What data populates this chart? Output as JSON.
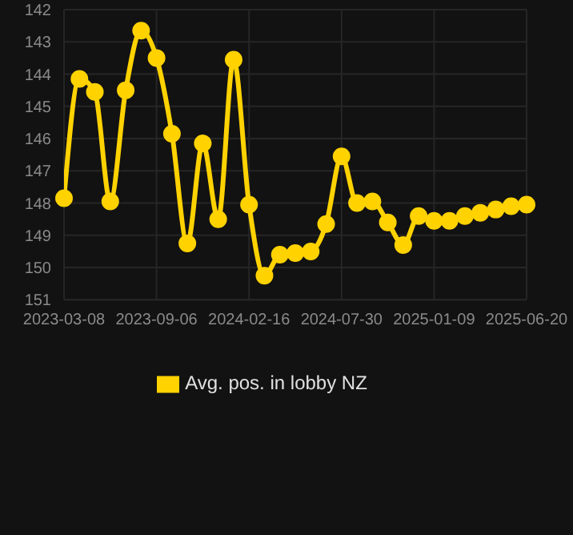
{
  "chart_data": {
    "type": "line",
    "categories": [
      "2023-03-08",
      null,
      null,
      null,
      null,
      null,
      "2023-09-06",
      null,
      null,
      null,
      null,
      null,
      "2024-02-16",
      null,
      null,
      null,
      null,
      null,
      "2024-07-30",
      null,
      null,
      null,
      null,
      null,
      "2025-01-09",
      null,
      null,
      null,
      null,
      null,
      "2025-06-20"
    ],
    "series": [
      {
        "name": "Avg. pos. in lobby NZ",
        "color": "#ffd200",
        "values": [
          147.85,
          144.15,
          144.55,
          147.95,
          144.5,
          142.65,
          143.5,
          145.85,
          149.25,
          146.15,
          148.5,
          143.55,
          148.05,
          150.25,
          149.6,
          149.55,
          149.5,
          148.65,
          146.55,
          148.0,
          147.95,
          148.6,
          149.3,
          148.4,
          148.55,
          148.55,
          148.4,
          148.3,
          148.2,
          148.1,
          148.05
        ]
      }
    ],
    "ylim": [
      151,
      142
    ],
    "yticks": [
      142,
      143,
      144,
      145,
      146,
      147,
      148,
      149,
      150,
      151
    ],
    "grid": true,
    "legend": "bottom",
    "marker": "circle",
    "line_style": "solid"
  }
}
